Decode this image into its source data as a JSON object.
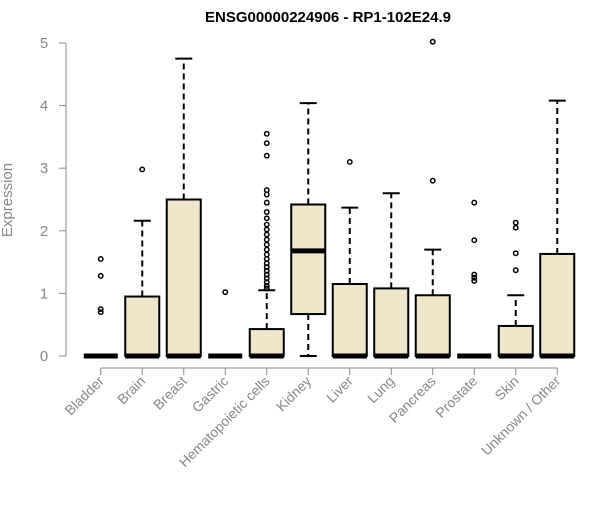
{
  "chart_data": {
    "type": "boxplot",
    "title": "ENSG00000224906 - RP1-102E24.9",
    "xlabel": "",
    "ylabel": "Expression",
    "ylim": [
      0,
      5
    ],
    "yticks": [
      0,
      1,
      2,
      3,
      4,
      5
    ],
    "grid": false,
    "legend": "none",
    "colors": {
      "box_fill": "#efe6cc",
      "stroke": "#000000",
      "axis_text": "#888888"
    },
    "categories": [
      "Bladder",
      "Brain",
      "Breast",
      "Gastric",
      "Hematopoietic cells",
      "Kidney",
      "Liver",
      "Lung",
      "Pancreas",
      "Prostate",
      "Skin",
      "Unknown / Other"
    ],
    "boxes": [
      {
        "q1": 0,
        "median": 0,
        "q3": 0,
        "whisker_low": 0,
        "whisker_high": 0,
        "outliers": [
          0.7,
          0.75,
          1.28,
          1.55
        ]
      },
      {
        "q1": 0,
        "median": 0,
        "q3": 0.95,
        "whisker_low": 0,
        "whisker_high": 2.16,
        "outliers": [
          2.98
        ]
      },
      {
        "q1": 0,
        "median": 0,
        "q3": 2.5,
        "whisker_low": 0,
        "whisker_high": 4.75,
        "outliers": []
      },
      {
        "q1": 0,
        "median": 0,
        "q3": 0,
        "whisker_low": 0,
        "whisker_high": 0,
        "outliers": [
          1.02
        ]
      },
      {
        "q1": 0,
        "median": 0,
        "q3": 0.43,
        "whisker_low": 0,
        "whisker_high": 1.05,
        "outliers": [
          1.08,
          1.12,
          1.18,
          1.24,
          1.3,
          1.36,
          1.42,
          1.48,
          1.55,
          1.62,
          1.7,
          1.78,
          1.86,
          1.94,
          2.02,
          2.1,
          2.2,
          2.3,
          2.45,
          2.58,
          2.65,
          3.2,
          3.4,
          3.55
        ]
      },
      {
        "q1": 0.67,
        "median": 1.68,
        "q3": 2.42,
        "whisker_low": 0,
        "whisker_high": 4.04,
        "outliers": []
      },
      {
        "q1": 0,
        "median": 0,
        "q3": 1.15,
        "whisker_low": 0,
        "whisker_high": 2.37,
        "outliers": [
          3.1
        ]
      },
      {
        "q1": 0,
        "median": 0,
        "q3": 1.08,
        "whisker_low": 0,
        "whisker_high": 2.6,
        "outliers": []
      },
      {
        "q1": 0,
        "median": 0,
        "q3": 0.97,
        "whisker_low": 0,
        "whisker_high": 1.7,
        "outliers": [
          2.8,
          5.02
        ]
      },
      {
        "q1": 0,
        "median": 0,
        "q3": 0,
        "whisker_low": 0,
        "whisker_high": 0,
        "outliers": [
          1.2,
          1.25,
          1.3,
          1.85,
          2.45
        ]
      },
      {
        "q1": 0,
        "median": 0,
        "q3": 0.48,
        "whisker_low": 0,
        "whisker_high": 0.97,
        "outliers": [
          1.37,
          1.64,
          2.05,
          2.13
        ]
      },
      {
        "q1": 0,
        "median": 0,
        "q3": 1.63,
        "whisker_low": 0,
        "whisker_high": 4.08,
        "outliers": []
      }
    ]
  }
}
